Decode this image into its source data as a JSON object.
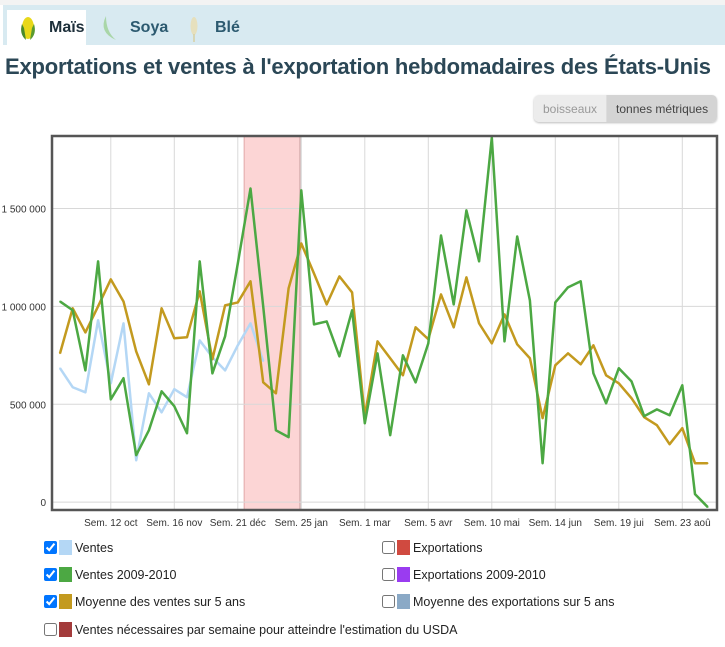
{
  "tabs": [
    {
      "label": "Maïs",
      "active": true,
      "icon": "corn-icon"
    },
    {
      "label": "Soya",
      "active": false,
      "icon": "soybean-icon"
    },
    {
      "label": "Blé",
      "active": false,
      "icon": "wheat-icon"
    }
  ],
  "title": "Exportations et ventes à l'exportation hebdomadaires des États-Unis",
  "unit_toggle": {
    "options": [
      "boisseaux",
      "tonnes métriques"
    ],
    "selected": "tonnes métriques"
  },
  "legend": [
    {
      "label": "Ventes",
      "color": "#b4d7f5",
      "checked": true
    },
    {
      "label": "Exportations",
      "color": "#d04a40",
      "checked": false
    },
    {
      "label": "Ventes 2009-2010",
      "color": "#4ca843",
      "checked": true
    },
    {
      "label": "Exportations 2009-2010",
      "color": "#9a3cf0",
      "checked": false
    },
    {
      "label": "Moyenne des ventes sur 5 ans",
      "color": "#c39a1f",
      "checked": true
    },
    {
      "label": "Moyenne des exportations sur 5 ans",
      "color": "#8aa9c6",
      "checked": false
    },
    {
      "label": "Ventes nécessaires par semaine pour atteindre l'estimation du USDA",
      "color": "#a33b3b",
      "checked": false
    }
  ],
  "chart_data": {
    "type": "line",
    "ylim": [
      -40000,
      1870000
    ],
    "yticks": [
      {
        "value": 0,
        "label": "0"
      },
      {
        "value": 500000,
        "label": "500 000"
      },
      {
        "value": 1000000,
        "label": "1 000 000"
      },
      {
        "value": 1500000,
        "label": "1 500 000"
      }
    ],
    "xticks": [
      {
        "index": 4,
        "label": "Sem. 12 oct"
      },
      {
        "index": 9,
        "label": "Sem. 16 nov"
      },
      {
        "index": 14,
        "label": "Sem. 21 déc"
      },
      {
        "index": 19,
        "label": "Sem. 25 jan"
      },
      {
        "index": 24,
        "label": "Sem. 1 mar"
      },
      {
        "index": 29,
        "label": "Sem. 5 avr"
      },
      {
        "index": 34,
        "label": "Sem. 10 mai"
      },
      {
        "index": 39,
        "label": "Sem. 14 jun"
      },
      {
        "index": 44,
        "label": "Sem. 19 jui"
      },
      {
        "index": 49,
        "label": "Sem. 23 aoû"
      }
    ],
    "highlight_band": {
      "from": 14.5,
      "to": 18.9,
      "color": "#fcd5d5"
    },
    "grid": true,
    "series": [
      {
        "name": "Ventes",
        "color": "#b4d7f5",
        "values": [
          684000,
          587000,
          561000,
          929000,
          607000,
          913000,
          214000,
          556000,
          459000,
          577000,
          536000,
          826000,
          740000,
          673000,
          801000,
          913000,
          720000
        ]
      },
      {
        "name": "Moyenne des ventes sur 5 ans",
        "color": "#c39a1f",
        "values": [
          760000,
          990000,
          867000,
          1000000,
          1138000,
          1025000,
          770000,
          602000,
          990000,
          837000,
          842000,
          1077000,
          730000,
          1005000,
          1020000,
          1128000,
          612000,
          556000,
          1092000,
          1321000,
          1168000,
          1010000,
          1153000,
          1071000,
          439000,
          821000,
          735000,
          648000,
          893000,
          832000,
          1061000,
          893000,
          1148000,
          913000,
          811000,
          959000,
          806000,
          735000,
          429000,
          699000,
          760000,
          704000,
          801000,
          648000,
          607000,
          531000,
          434000,
          393000,
          296000,
          378000,
          199000,
          199000
        ]
      },
      {
        "name": "Ventes 2009-2010",
        "color": "#4ca843",
        "values": [
          1025000,
          980000,
          673000,
          1230000,
          525000,
          633000,
          240000,
          367000,
          566000,
          490000,
          352000,
          1230000,
          658000,
          847000,
          1219000,
          1602000,
          1000000,
          367000,
          332000,
          1592000,
          908000,
          923000,
          745000,
          980000,
          403000,
          760000,
          342000,
          750000,
          612000,
          811000,
          1362000,
          1010000,
          1490000,
          1230000,
          1862000,
          821000,
          1357000,
          1030000,
          199000,
          1020000,
          1097000,
          1128000,
          658000,
          505000,
          684000,
          617000,
          439000,
          474000,
          444000,
          597000,
          41000,
          -25000
        ]
      }
    ]
  }
}
